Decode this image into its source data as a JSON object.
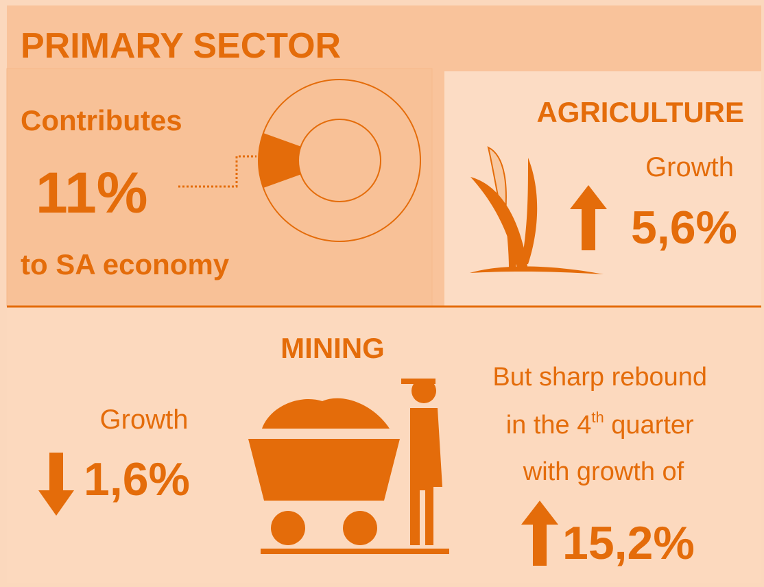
{
  "header": {
    "title": "PRIMARY SECTOR"
  },
  "contribution": {
    "intro": "Contributes",
    "share": {
      "value": 11,
      "label": "11%"
    },
    "outro": "to SA economy"
  },
  "agriculture": {
    "title": "AGRICULTURE",
    "growth_label": "Growth",
    "growth": "5,6%"
  },
  "mining": {
    "title": "MINING",
    "growth_label": "Growth",
    "growth": "1,6%",
    "note": {
      "line1": "But sharp rebound",
      "line2_start": "in the 4",
      "line2_sup": "th",
      "line2_end": " quarter",
      "line3": "with growth of"
    },
    "rebound": "15,2%"
  }
}
